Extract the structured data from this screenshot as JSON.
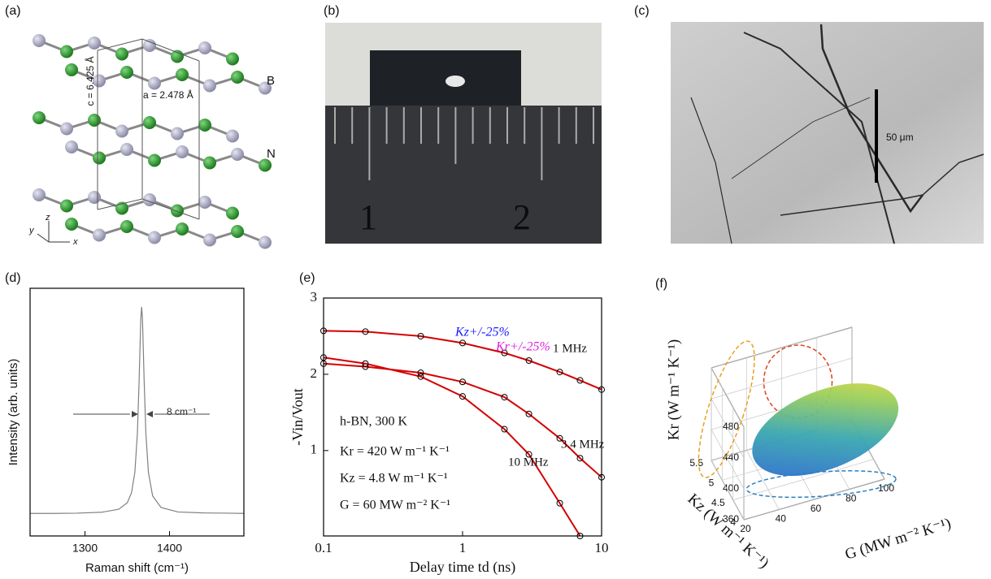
{
  "images": {
    "a": {
      "label": "(a)",
      "atom_b": "B",
      "atom_n": "N",
      "c_param": "c = 6.425 Å",
      "a_param": "a = 2.478 Å",
      "axis_x": "x",
      "axis_y": "y",
      "axis_z": "z"
    },
    "b": {
      "label": "(b)",
      "ruler_1": "1",
      "ruler_2": "2"
    },
    "c": {
      "label": "(c)",
      "scale_bar": "50 μm"
    }
  },
  "chart_data": [
    {
      "type": "line",
      "panel_label": "(d)",
      "xlabel": "Raman shift (cm⁻¹)",
      "ylabel": "Intensity (arb. units)",
      "x": [
        1235,
        1260,
        1290,
        1320,
        1340,
        1350,
        1355,
        1359,
        1362,
        1364,
        1366,
        1367,
        1368,
        1370,
        1372,
        1375,
        1380,
        1390,
        1410,
        1440,
        1470,
        1488
      ],
      "values": [
        0.091,
        0.091,
        0.092,
        0.096,
        0.108,
        0.134,
        0.174,
        0.257,
        0.416,
        0.624,
        0.876,
        0.925,
        0.876,
        0.624,
        0.416,
        0.257,
        0.162,
        0.115,
        0.097,
        0.093,
        0.092,
        0.091
      ],
      "color": "#808080",
      "xlim": [
        1235,
        1488
      ],
      "ylim": [
        0,
        1
      ],
      "xticks": [
        1300,
        1400
      ],
      "annotations": [
        "8 cm⁻¹"
      ]
    },
    {
      "type": "line",
      "panel_label": "(e)",
      "xlabel": "Delay time td (ns)",
      "ylabel": "-Vin/Vout",
      "xscale": "log",
      "x": [
        0.1,
        0.2,
        0.5,
        1,
        2,
        3,
        5,
        7,
        10
      ],
      "series": [
        {
          "name": "1 MHz",
          "color": "#d40000",
          "values": [
            2.57,
            2.56,
            2.5,
            2.41,
            2.28,
            2.18,
            2.03,
            1.92,
            1.8
          ]
        },
        {
          "name": "3.4 MHz",
          "color": "#d40000",
          "values": [
            2.14,
            2.1,
            2.02,
            1.9,
            1.7,
            1.48,
            1.16,
            0.9,
            0.65
          ]
        },
        {
          "name": "10 MHz",
          "color": "#d40000",
          "values": [
            2.22,
            2.14,
            1.97,
            1.71,
            1.28,
            0.95,
            0.31,
            -0.12,
            null
          ]
        }
      ],
      "xlim": [
        0.1,
        10
      ],
      "ylim": [
        -0.12,
        3
      ],
      "xticks": [
        0.1,
        1,
        10
      ],
      "yticks": [
        1,
        2,
        3
      ],
      "annotations": [
        "Kz+/-25%",
        "Kr+/-25%",
        "h-BN, 300 K",
        "Kr = 420 W m⁻¹ K⁻¹",
        "Kz = 4.8 W m⁻¹ K⁻¹",
        "G = 60 MW m⁻² K⁻¹"
      ]
    },
    {
      "type": "ellipsoid",
      "panel_label": "(f)",
      "xlabel": "G (MW m⁻² K⁻¹)",
      "ylabel": "Kz (W m⁻¹ K⁻¹)",
      "zlabel": "Kr (W m⁻¹ K⁻¹)",
      "center": [
        60,
        4.8,
        420
      ],
      "xlim": [
        20,
        100
      ],
      "ylim": [
        4,
        5.5
      ],
      "zlim": [
        360,
        480
      ],
      "xticks": [
        20,
        40,
        60,
        80,
        100
      ],
      "yticks": [
        4,
        4.5,
        5,
        5.5
      ],
      "zticks": [
        360,
        400,
        440,
        480
      ]
    }
  ]
}
